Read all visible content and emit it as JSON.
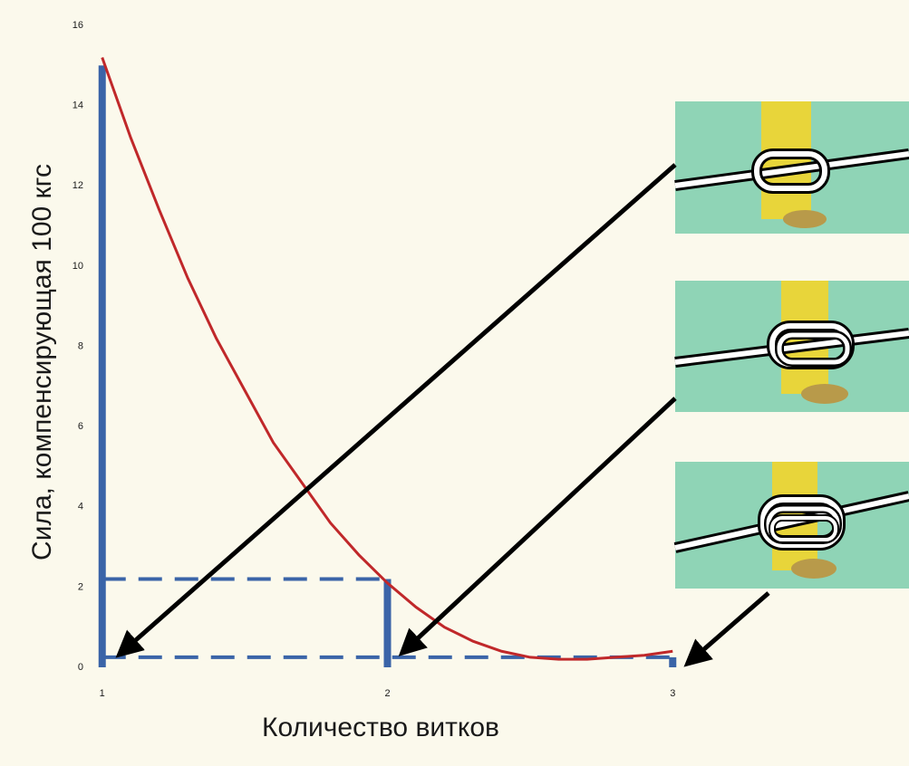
{
  "chart_data": {
    "type": "line",
    "ylabel": "Сила, компенсирующая 100 кгс",
    "xlabel": "Количество витков",
    "x": [
      1.0,
      1.1,
      1.2,
      1.3,
      1.4,
      1.5,
      1.6,
      1.7,
      1.8,
      1.9,
      2.0,
      2.1,
      2.2,
      2.3,
      2.4,
      2.5,
      2.6,
      2.7,
      2.8,
      2.9,
      3.0
    ],
    "values": [
      15.2,
      13.2,
      11.4,
      9.7,
      8.2,
      6.9,
      5.6,
      4.6,
      3.6,
      2.8,
      2.1,
      1.5,
      1.0,
      0.65,
      0.4,
      0.25,
      0.2,
      0.2,
      0.25,
      0.3,
      0.4
    ],
    "color": "#c0282a",
    "bars": {
      "x": [
        1,
        2,
        3
      ],
      "values": [
        15,
        2.2,
        0.25
      ],
      "color": "#3a64a8"
    },
    "xlim": [
      0.95,
      3.05
    ],
    "ylim": [
      0,
      16
    ],
    "xticks": [
      1,
      2,
      3
    ],
    "yticks": [
      0,
      2,
      4,
      6,
      8,
      10,
      12,
      14,
      16
    ]
  }
}
